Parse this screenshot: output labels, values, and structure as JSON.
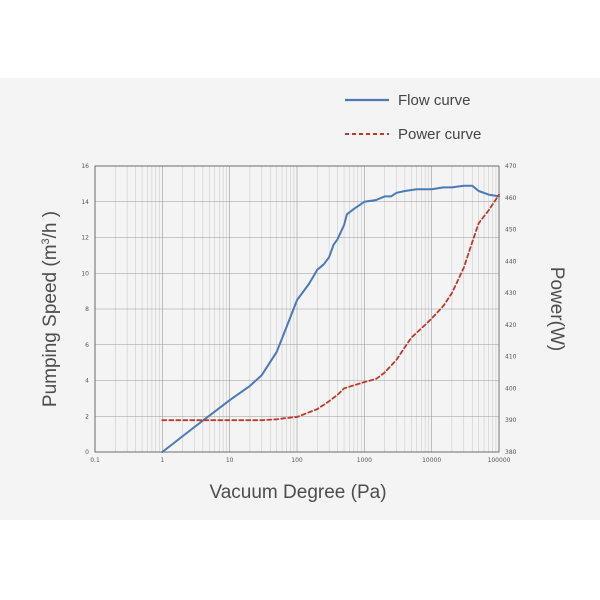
{
  "chart_data": {
    "type": "line",
    "x_scale": "log",
    "xlim": [
      0.1,
      100000
    ],
    "ylim": [
      0,
      16
    ],
    "y2lim": [
      380,
      470
    ],
    "xlabel": "Vacuum Degree (Pa)",
    "ylabel_prefix": "Pumping Speed (m",
    "ylabel_sup": "3",
    "ylabel_suffix": "/h )",
    "y2label": "Power(W)",
    "x_ticks": [
      0.1,
      1,
      10,
      100,
      1000,
      10000,
      100000
    ],
    "x_tick_labels": [
      "0.1",
      "1",
      "10",
      "100",
      "1000",
      "10000",
      "100000"
    ],
    "y_ticks": [
      0,
      2,
      4,
      6,
      8,
      10,
      12,
      14,
      16
    ],
    "y_tick_labels": [
      "0",
      "2",
      "4",
      "6",
      "8",
      "10",
      "12",
      "14",
      "16"
    ],
    "y2_ticks": [
      380,
      390,
      400,
      410,
      420,
      430,
      440,
      450,
      460,
      470
    ],
    "y2_tick_labels": [
      "380",
      "390",
      "400",
      "410",
      "420",
      "430",
      "440",
      "450",
      "460",
      "470"
    ],
    "grid": true,
    "legend_position": "top-right",
    "series": [
      {
        "name": "Flow curve",
        "axis": "left",
        "color": "#4a7ab8",
        "style": "solid",
        "x": [
          1,
          3,
          10,
          20,
          30,
          50,
          70,
          100,
          150,
          200,
          250,
          300,
          350,
          400,
          500,
          550,
          700,
          1000,
          1500,
          2000,
          2500,
          3000,
          4000,
          6000,
          10000,
          15000,
          20000,
          30000,
          40000,
          50000,
          70000,
          100000
        ],
        "y": [
          0,
          1.4,
          2.9,
          3.7,
          4.3,
          5.6,
          7.0,
          8.5,
          9.4,
          10.2,
          10.5,
          10.9,
          11.6,
          11.9,
          12.7,
          13.3,
          13.6,
          14.0,
          14.1,
          14.3,
          14.3,
          14.5,
          14.6,
          14.7,
          14.7,
          14.8,
          14.8,
          14.9,
          14.9,
          14.6,
          14.4,
          14.3
        ]
      },
      {
        "name": "Power curve",
        "axis": "right",
        "color": "#c0392b",
        "style": "dashed",
        "x": [
          1,
          10,
          30,
          50,
          70,
          100,
          200,
          300,
          400,
          500,
          700,
          1000,
          1500,
          2000,
          3000,
          4000,
          5000,
          8000,
          10000,
          15000,
          20000,
          30000,
          40000,
          50000,
          70000,
          100000
        ],
        "y": [
          390,
          390,
          390,
          390.3,
          390.7,
          391,
          393.5,
          396,
          398,
          400,
          401,
          402,
          403,
          405,
          409,
          413,
          416,
          420,
          422,
          426,
          430,
          438,
          446,
          452,
          456,
          461
        ]
      }
    ]
  }
}
